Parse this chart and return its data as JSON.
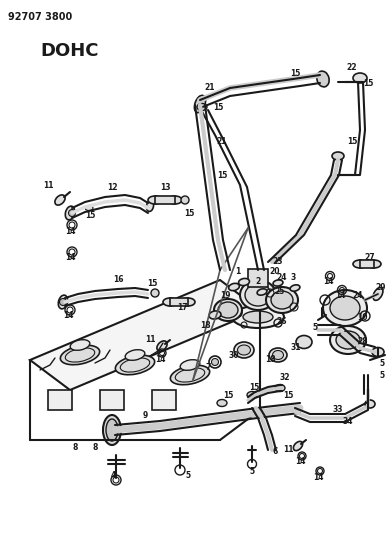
{
  "title1": "92707 3800",
  "title2": "DOHC",
  "bg": "#ffffff",
  "lc": "#1a1a1a",
  "fig_w": 3.92,
  "fig_h": 5.33,
  "dpi": 100
}
